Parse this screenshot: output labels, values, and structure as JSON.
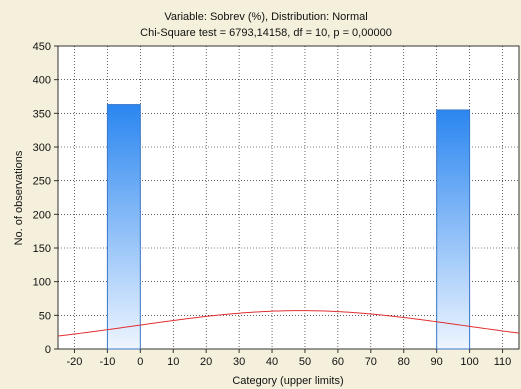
{
  "chart_data": {
    "type": "bar",
    "title": "Variable: Sobrev (%), Distribution: Normal",
    "subtitle": "Chi-Square test = 6793,14158, df = 10, p = 0,00000",
    "xlabel": "Category (upper limits)",
    "ylabel": "No. of observations",
    "xlim": [
      -25,
      115
    ],
    "ylim": [
      0,
      450
    ],
    "x_ticks": [
      -20,
      -10,
      0,
      10,
      20,
      30,
      40,
      50,
      60,
      70,
      80,
      90,
      100,
      110
    ],
    "y_ticks": [
      0,
      50,
      100,
      150,
      200,
      250,
      300,
      350,
      400,
      450
    ],
    "grid": true,
    "bins": [
      {
        "lower": -10,
        "upper": 0,
        "value": 363
      },
      {
        "lower": 90,
        "upper": 100,
        "value": 355
      }
    ],
    "normal_curve": {
      "mean": 48.6,
      "sd": 50,
      "peak": 57,
      "color": "#e03030"
    },
    "bar_color_top": "#2a86f0",
    "bar_color_bottom": "#eef5ff"
  }
}
